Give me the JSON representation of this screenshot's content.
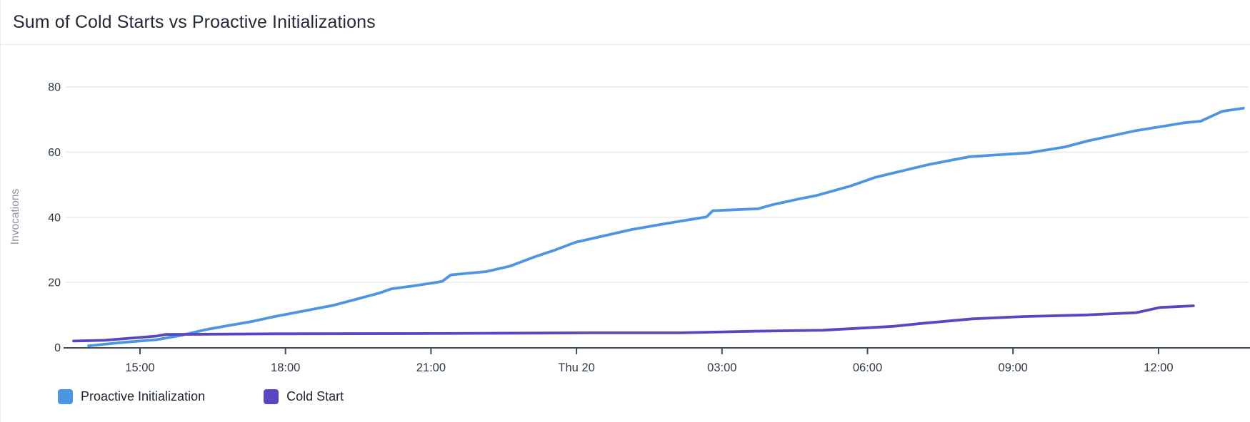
{
  "header": {
    "title": "Sum of Cold Starts vs Proactive Initializations"
  },
  "chart_data": {
    "type": "line",
    "title": "Sum of Cold Starts vs Proactive Initializations",
    "xlabel": "",
    "ylabel": "Invocations",
    "ylim": [
      0,
      80
    ],
    "yticks": [
      0,
      20,
      40,
      60,
      80
    ],
    "grid": "horizontal",
    "legend_position": "bottom-left",
    "x_unit": "hours_from_15:00_tick",
    "xticks": [
      {
        "t": 0,
        "label": "15:00"
      },
      {
        "t": 3,
        "label": "18:00"
      },
      {
        "t": 6,
        "label": "21:00"
      },
      {
        "t": 9,
        "label": "Thu 20"
      },
      {
        "t": 12,
        "label": "03:00"
      },
      {
        "t": 15,
        "label": "06:00"
      },
      {
        "t": 18,
        "label": "09:00"
      },
      {
        "t": 21,
        "label": "12:00"
      }
    ],
    "series": [
      {
        "name": "Proactive Initialization",
        "color": "#4d95e0",
        "points": [
          [
            -1.06,
            0.5
          ],
          [
            -0.4,
            1.5
          ],
          [
            0.34,
            2.4
          ],
          [
            0.84,
            3.7
          ],
          [
            1.33,
            5.4
          ],
          [
            1.81,
            6.7
          ],
          [
            2.31,
            8
          ],
          [
            2.77,
            9.5
          ],
          [
            3.3,
            11
          ],
          [
            4,
            13
          ],
          [
            4.5,
            15
          ],
          [
            4.93,
            16.7
          ],
          [
            5.18,
            18
          ],
          [
            5.67,
            19
          ],
          [
            6.11,
            20
          ],
          [
            6.23,
            20.3
          ],
          [
            6.41,
            22.3
          ],
          [
            7.14,
            23.3
          ],
          [
            7.63,
            25
          ],
          [
            8.13,
            27.8
          ],
          [
            8.57,
            30
          ],
          [
            8.98,
            32.3
          ],
          [
            10.13,
            36.2
          ],
          [
            10.82,
            38
          ],
          [
            11.68,
            40.1
          ],
          [
            11.81,
            42
          ],
          [
            12.74,
            42.6
          ],
          [
            13.03,
            43.8
          ],
          [
            13.58,
            45.6
          ],
          [
            13.96,
            46.7
          ],
          [
            14.65,
            49.6
          ],
          [
            15.17,
            52.3
          ],
          [
            16.27,
            56.2
          ],
          [
            17.11,
            58.6
          ],
          [
            18.34,
            59.8
          ],
          [
            19.07,
            61.6
          ],
          [
            19.56,
            63.5
          ],
          [
            20.54,
            66.6
          ],
          [
            21.53,
            69
          ],
          [
            21.87,
            69.5
          ],
          [
            22.31,
            72.5
          ],
          [
            22.75,
            73.5
          ]
        ]
      },
      {
        "name": "Cold Start",
        "color": "#5b46c2",
        "points": [
          [
            -1.37,
            2
          ],
          [
            -0.74,
            2.2
          ],
          [
            0.34,
            3.5
          ],
          [
            0.52,
            4
          ],
          [
            2.72,
            4.2
          ],
          [
            5.96,
            4.3
          ],
          [
            9.35,
            4.5
          ],
          [
            11.12,
            4.5
          ],
          [
            12.64,
            5
          ],
          [
            14.06,
            5.3
          ],
          [
            15.53,
            6.5
          ],
          [
            16.12,
            7.4
          ],
          [
            17.16,
            8.8
          ],
          [
            18.19,
            9.5
          ],
          [
            19.51,
            10
          ],
          [
            20.54,
            10.7
          ],
          [
            21.03,
            12.3
          ],
          [
            21.72,
            12.8
          ]
        ]
      }
    ]
  },
  "style": {
    "gridline_color": "#e9eaed",
    "axis_line_color": "#414d5c",
    "tick_label_color": "#2d3846",
    "title_color": "#232b37",
    "y_axis_title_color": "#8c95a0"
  }
}
